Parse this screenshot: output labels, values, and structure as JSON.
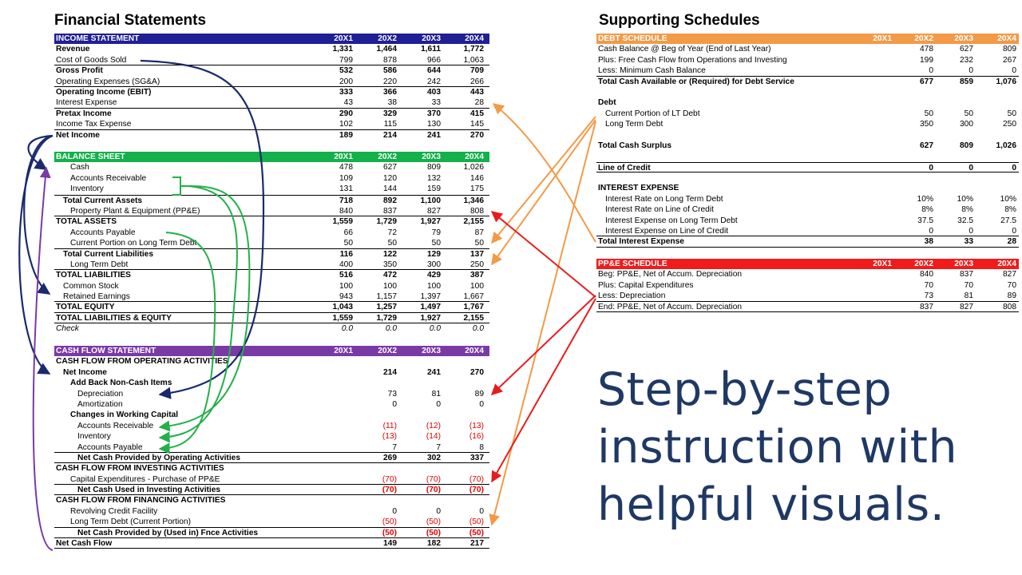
{
  "financial_title": "Financial Statements",
  "supporting_title": "Supporting Schedules",
  "tagline": [
    "Step-by-step",
    "instruction with",
    "helpful visuals."
  ],
  "income_statement": {
    "header": {
      "label": "INCOME STATEMENT",
      "cols": [
        "20X1",
        "20X2",
        "20X3",
        "20X4"
      ]
    },
    "rows": [
      {
        "label": "Revenue",
        "vals": [
          "1,331",
          "1,464",
          "1,611",
          "1,772"
        ],
        "style": "bold"
      },
      {
        "label": "Cost of Goods Sold",
        "vals": [
          "799",
          "878",
          "966",
          "1,063"
        ],
        "style": "bb"
      },
      {
        "label": "Gross Profit",
        "vals": [
          "532",
          "586",
          "644",
          "709"
        ],
        "style": "bold"
      },
      {
        "label": "Operating Expenses (SG&A)",
        "vals": [
          "200",
          "220",
          "242",
          "266"
        ],
        "style": "bb"
      },
      {
        "label": "Operating Income (EBIT)",
        "vals": [
          "333",
          "366",
          "403",
          "443"
        ],
        "style": "bold"
      },
      {
        "label": "Interest Expense",
        "vals": [
          "43",
          "38",
          "33",
          "28"
        ],
        "style": "bb"
      },
      {
        "label": "Pretax Income",
        "vals": [
          "290",
          "329",
          "370",
          "415"
        ],
        "style": "bold"
      },
      {
        "label": "Income Tax Expense",
        "vals": [
          "102",
          "115",
          "130",
          "145"
        ],
        "style": "bb"
      },
      {
        "label": "Net Income",
        "vals": [
          "189",
          "214",
          "241",
          "270"
        ],
        "style": "bold"
      }
    ]
  },
  "balance_sheet": {
    "header": {
      "label": "BALANCE SHEET",
      "cols": [
        "20X1",
        "20X2",
        "20X3",
        "20X4"
      ]
    },
    "rows": [
      {
        "label": "Cash",
        "vals": [
          "478",
          "627",
          "809",
          "1,026"
        ],
        "indent": 2
      },
      {
        "label": "Accounts Receivable",
        "vals": [
          "109",
          "120",
          "132",
          "146"
        ],
        "indent": 2
      },
      {
        "label": "Inventory",
        "vals": [
          "131",
          "144",
          "159",
          "175"
        ],
        "indent": 2
      },
      {
        "label": "Total Current Assets",
        "vals": [
          "718",
          "892",
          "1,100",
          "1,346"
        ],
        "indent": 1,
        "style": "bold bt"
      },
      {
        "label": "Property Plant & Equipment (PP&E)",
        "vals": [
          "840",
          "837",
          "827",
          "808"
        ],
        "indent": 2,
        "style": "bb"
      },
      {
        "label": "TOTAL ASSETS",
        "vals": [
          "1,559",
          "1,729",
          "1,927",
          "2,155"
        ],
        "style": "bold"
      },
      {
        "label": "Accounts Payable",
        "vals": [
          "66",
          "72",
          "79",
          "87"
        ],
        "indent": 2
      },
      {
        "label": "Current Portion on Long Term Debt",
        "vals": [
          "50",
          "50",
          "50",
          "50"
        ],
        "indent": 2,
        "style": "bb"
      },
      {
        "label": "Total Current Liabilities",
        "vals": [
          "116",
          "122",
          "129",
          "137"
        ],
        "indent": 1,
        "style": "bold"
      },
      {
        "label": "Long Term Debt",
        "vals": [
          "400",
          "350",
          "300",
          "250"
        ],
        "indent": 2,
        "style": "bb"
      },
      {
        "label": "TOTAL LIABILITIES",
        "vals": [
          "516",
          "472",
          "429",
          "387"
        ],
        "style": "bold"
      },
      {
        "label": "Common Stock",
        "vals": [
          "100",
          "100",
          "100",
          "100"
        ],
        "indent": 1
      },
      {
        "label": "Retained Earnings",
        "vals": [
          "943",
          "1,157",
          "1,397",
          "1,667"
        ],
        "indent": 1,
        "style": "bb"
      },
      {
        "label": "TOTAL EQUITY",
        "vals": [
          "1,043",
          "1,257",
          "1,497",
          "1,767"
        ],
        "style": "bold bb"
      },
      {
        "label": "TOTAL LIABILITIES & EQUITY",
        "vals": [
          "1,559",
          "1,729",
          "1,927",
          "2,155"
        ],
        "style": "bold bb"
      },
      {
        "label": "Check",
        "vals": [
          "0.0",
          "0.0",
          "0.0",
          "0.0"
        ],
        "style": "ital"
      }
    ]
  },
  "cash_flow": {
    "header": {
      "label": "CASH FLOW STATEMENT",
      "cols": [
        "20X1",
        "20X2",
        "20X3",
        "20X4"
      ]
    },
    "rows": [
      {
        "label": "CASH FLOW FROM OPERATING ACTIVITIES",
        "vals": [
          "",
          "",
          "",
          ""
        ],
        "style": "bold"
      },
      {
        "label": "Net Income",
        "vals": [
          "",
          "214",
          "241",
          "270"
        ],
        "indent": 1,
        "style": "bold"
      },
      {
        "label": "Add Back Non-Cash Items",
        "vals": [
          "",
          "",
          "",
          ""
        ],
        "indent": 2,
        "style": "bold"
      },
      {
        "label": "Depreciation",
        "vals": [
          "",
          "73",
          "81",
          "89"
        ],
        "indent": 3
      },
      {
        "label": "Amortization",
        "vals": [
          "",
          "0",
          "0",
          "0"
        ],
        "indent": 3
      },
      {
        "label": "Changes in Working Capital",
        "vals": [
          "",
          "",
          "",
          ""
        ],
        "indent": 2,
        "style": "bold"
      },
      {
        "label": "Accounts Receivable",
        "vals": [
          "",
          "(11)",
          "(12)",
          "(13)"
        ],
        "indent": 3,
        "neg": true
      },
      {
        "label": "Inventory",
        "vals": [
          "",
          "(13)",
          "(14)",
          "(16)"
        ],
        "indent": 3,
        "neg": true
      },
      {
        "label": "Accounts Payable",
        "vals": [
          "",
          "7",
          "7",
          "8"
        ],
        "indent": 3,
        "style": "bb"
      },
      {
        "label": "Net Cash Provided by Operating Activities",
        "vals": [
          "",
          "269",
          "302",
          "337"
        ],
        "indent": 3,
        "style": "bold bb"
      },
      {
        "label": "CASH FLOW FROM INVESTING ACTIVITIES",
        "vals": [
          "",
          "",
          "",
          ""
        ],
        "style": "bold"
      },
      {
        "label": "Capital Expenditures - Purchase of PP&E",
        "vals": [
          "",
          "(70)",
          "(70)",
          "(70)"
        ],
        "indent": 2,
        "neg": true,
        "style": "bb"
      },
      {
        "label": "Net Cash Used in Investing Activities",
        "vals": [
          "",
          "(70)",
          "(70)",
          "(70)"
        ],
        "indent": 3,
        "neg": true,
        "style": "bold bb"
      },
      {
        "label": "CASH FLOW FROM FINANCING ACTIVITIES",
        "vals": [
          "",
          "",
          "",
          ""
        ],
        "style": "bold"
      },
      {
        "label": "Revolving Credit Facility",
        "vals": [
          "",
          "0",
          "0",
          "0"
        ],
        "indent": 2
      },
      {
        "label": "Long Term Debt (Current Portion)",
        "vals": [
          "",
          "(50)",
          "(50)",
          "(50)"
        ],
        "indent": 2,
        "neg": true,
        "style": "bb"
      },
      {
        "label": "Net Cash Provided by (Used in) Fnce Activities",
        "vals": [
          "",
          "(50)",
          "(50)",
          "(50)"
        ],
        "indent": 3,
        "neg": true,
        "style": "bold bb"
      },
      {
        "label": "Net Cash Flow",
        "vals": [
          "",
          "149",
          "182",
          "217"
        ],
        "style": "bold bb"
      }
    ]
  },
  "debt_schedule": {
    "header": {
      "label": "DEBT SCHEDULE",
      "cols": [
        "20X1",
        "20X2",
        "20X3",
        "20X4"
      ]
    },
    "rows": [
      {
        "label": "Cash Balance @ Beg of Year (End of Last Year)",
        "vals": [
          "",
          "478",
          "627",
          "809"
        ]
      },
      {
        "label": "Plus: Free Cash Flow from Operations and Investing",
        "vals": [
          "",
          "199",
          "232",
          "267"
        ]
      },
      {
        "label": "Less: Minimum Cash Balance",
        "vals": [
          "",
          "0",
          "0",
          "0"
        ],
        "style": "bb"
      },
      {
        "label": "Total Cash Available or (Required) for Debt Service",
        "vals": [
          "",
          "677",
          "859",
          "1,076"
        ],
        "style": "bold"
      },
      {
        "label": "",
        "vals": [
          "",
          "",
          "",
          ""
        ]
      },
      {
        "label": "Debt",
        "vals": [
          "",
          "",
          "",
          ""
        ],
        "style": "bold"
      },
      {
        "label": "Current Portion of LT Debt",
        "vals": [
          "",
          "50",
          "50",
          "50"
        ],
        "indent": 1
      },
      {
        "label": "Long Term Debt",
        "vals": [
          "",
          "350",
          "300",
          "250"
        ],
        "indent": 1
      },
      {
        "label": "",
        "vals": [
          "",
          "",
          "",
          ""
        ]
      },
      {
        "label": "Total Cash Surplus",
        "vals": [
          "",
          "627",
          "809",
          "1,026"
        ],
        "style": "bold"
      },
      {
        "label": "",
        "vals": [
          "",
          "",
          "",
          ""
        ]
      },
      {
        "label": "Line of Credit",
        "vals": [
          "",
          "0",
          "0",
          "0"
        ],
        "style": "bold bt bb"
      },
      {
        "label": "",
        "vals": [
          "",
          "",
          "",
          ""
        ]
      },
      {
        "label": "INTEREST EXPENSE",
        "vals": [
          "",
          "",
          "",
          ""
        ],
        "style": "bold"
      },
      {
        "label": "Interest Rate on Long Term Debt",
        "vals": [
          "",
          "10%",
          "10%",
          "10%"
        ],
        "indent": 1
      },
      {
        "label": "Interest Rate on Line of Credit",
        "vals": [
          "",
          "8%",
          "8%",
          "8%"
        ],
        "indent": 1
      },
      {
        "label": "Interest Expense on Long Term Debt",
        "vals": [
          "",
          "37.5",
          "32.5",
          "27.5"
        ],
        "indent": 1
      },
      {
        "label": "Interest Expense on Line of Credit",
        "vals": [
          "",
          "0",
          "0",
          "0"
        ],
        "indent": 1,
        "style": "bb"
      },
      {
        "label": "Total Interest Expense",
        "vals": [
          "",
          "38",
          "33",
          "28"
        ],
        "style": "bold bb"
      }
    ]
  },
  "ppe_schedule": {
    "header": {
      "label": "PP&E SCHEDULE",
      "cols": [
        "20X1",
        "20X2",
        "20X3",
        "20X4"
      ]
    },
    "rows": [
      {
        "label": "Beg: PP&E, Net of Accum. Depreciation",
        "vals": [
          "",
          "840",
          "837",
          "827"
        ]
      },
      {
        "label": "Plus: Capital Expenditures",
        "vals": [
          "",
          "70",
          "70",
          "70"
        ]
      },
      {
        "label": "Less: Depreciation",
        "vals": [
          "",
          "73",
          "81",
          "89"
        ],
        "style": "bb"
      },
      {
        "label": "End: PP&E, Net of Accum. Depreciation",
        "vals": [
          "",
          "837",
          "827",
          "808"
        ],
        "style": "bb"
      }
    ]
  },
  "colors": {
    "income_header": "#1f1f96",
    "balance_header": "#14b04a",
    "cashflow_header": "#7a3aa6",
    "debt_header": "#f39a47",
    "ppe_header": "#f01c1c",
    "tagline": "#1f3864"
  }
}
